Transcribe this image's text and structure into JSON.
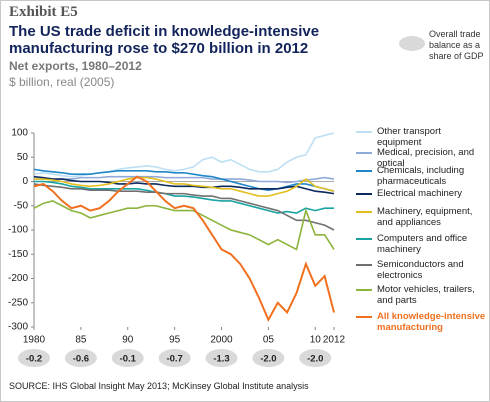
{
  "exhibit": "Exhibit E5",
  "chart_data": {
    "type": "line",
    "title": "The US trade deficit in knowledge-intensive manufacturing rose to $270 billion in 2012",
    "subtitle": "Net exports, 1980–2012",
    "y_label": "$ billion, real (2005)",
    "x": [
      1980,
      1981,
      1982,
      1983,
      1984,
      1985,
      1986,
      1987,
      1988,
      1989,
      1990,
      1991,
      1992,
      1993,
      1994,
      1995,
      1996,
      1997,
      1998,
      1999,
      2000,
      2001,
      2002,
      2003,
      2004,
      2005,
      2006,
      2007,
      2008,
      2009,
      2010,
      2011,
      2012
    ],
    "xlim": [
      1980,
      2012
    ],
    "xticks": [
      1980,
      {
        "value": 1985,
        "label": "85"
      },
      {
        "value": 1990,
        "label": "90"
      },
      {
        "value": 1995,
        "label": "95"
      },
      2000,
      {
        "value": 2005,
        "label": "05"
      },
      {
        "value": 2010,
        "label": "10"
      },
      2012
    ],
    "ylim": [
      -300,
      100
    ],
    "yticks": [
      100,
      50,
      0,
      -50,
      -100,
      -150,
      -200,
      -250,
      -300
    ],
    "grid": false,
    "series": [
      {
        "name": "Other transport equipment",
        "color": "#bcdff4",
        "values": [
          15,
          18,
          15,
          12,
          10,
          12,
          15,
          18,
          20,
          25,
          28,
          30,
          32,
          30,
          25,
          22,
          25,
          30,
          45,
          50,
          40,
          45,
          35,
          25,
          20,
          20,
          25,
          40,
          50,
          55,
          90,
          95,
          100
        ]
      },
      {
        "name": "Medical, precision, and optical",
        "color": "#8fa9d9",
        "values": [
          5,
          5,
          5,
          5,
          5,
          8,
          8,
          8,
          10,
          10,
          10,
          10,
          10,
          10,
          8,
          8,
          8,
          8,
          8,
          5,
          5,
          5,
          5,
          3,
          0,
          0,
          0,
          -2,
          0,
          3,
          5,
          8,
          5
        ]
      },
      {
        "name": "Chemicals, including pharmaceuticals",
        "color": "#1f86c8",
        "values": [
          25,
          22,
          20,
          18,
          15,
          15,
          15,
          18,
          20,
          22,
          22,
          22,
          22,
          20,
          20,
          18,
          18,
          15,
          12,
          10,
          5,
          0,
          -5,
          -10,
          -15,
          -18,
          -15,
          -10,
          -5,
          -5,
          -10,
          -15,
          -20
        ]
      },
      {
        "name": "Electrical machinery",
        "color": "#0d2a5e",
        "values": [
          10,
          8,
          5,
          5,
          2,
          0,
          0,
          0,
          -2,
          -5,
          -5,
          -3,
          -5,
          -5,
          -8,
          -10,
          -10,
          -10,
          -12,
          -12,
          -10,
          -10,
          -12,
          -15,
          -15,
          -15,
          -15,
          -12,
          -10,
          -15,
          -20,
          -22,
          -25
        ]
      },
      {
        "name": "Machinery, equipment, and appliances",
        "color": "#e3bf1e",
        "values": [
          5,
          5,
          3,
          0,
          -5,
          -8,
          -10,
          -8,
          -5,
          0,
          5,
          8,
          8,
          5,
          0,
          -5,
          -5,
          -8,
          -10,
          -12,
          -15,
          -15,
          -20,
          -25,
          -30,
          -30,
          -25,
          -20,
          -10,
          5,
          -10,
          -15,
          -20
        ]
      },
      {
        "name": "Computers and office machinery",
        "color": "#1aa3a3",
        "values": [
          0,
          0,
          -2,
          -5,
          -10,
          -12,
          -15,
          -15,
          -15,
          -15,
          -15,
          -15,
          -18,
          -22,
          -25,
          -30,
          -30,
          -32,
          -35,
          -38,
          -40,
          -40,
          -45,
          -50,
          -55,
          -60,
          -65,
          -62,
          -65,
          -55,
          -60,
          -55,
          -55
        ]
      },
      {
        "name": "Semiconductors and electronics",
        "color": "#707070",
        "values": [
          -5,
          -8,
          -10,
          -12,
          -15,
          -15,
          -18,
          -18,
          -18,
          -20,
          -20,
          -20,
          -22,
          -22,
          -25,
          -25,
          -25,
          -28,
          -30,
          -30,
          -35,
          -35,
          -40,
          -45,
          -50,
          -55,
          -60,
          -70,
          -80,
          -80,
          -85,
          -90,
          -100
        ]
      },
      {
        "name": "Motor vehicles, trailers, and parts",
        "color": "#8cb43c",
        "values": [
          -55,
          -45,
          -40,
          -50,
          -60,
          -65,
          -75,
          -70,
          -65,
          -60,
          -55,
          -55,
          -50,
          -50,
          -55,
          -60,
          -60,
          -60,
          -70,
          -80,
          -90,
          -100,
          -105,
          -110,
          -120,
          -130,
          -120,
          -130,
          -140,
          -60,
          -110,
          -110,
          -140
        ]
      },
      {
        "name": "All knowledge-intensive manufacturing",
        "color": "#f07020",
        "values": [
          -10,
          -5,
          -20,
          -40,
          -55,
          -50,
          -60,
          -55,
          -40,
          -20,
          -5,
          10,
          0,
          -20,
          -40,
          -55,
          -50,
          -55,
          -80,
          -110,
          -140,
          -150,
          -170,
          -200,
          -240,
          -285,
          -250,
          -270,
          -230,
          -170,
          -215,
          -195,
          -270
        ]
      }
    ],
    "gdp_balance": {
      "name": "Overall trade balance as a share of GDP",
      "color": "#d9d9d9",
      "x": [
        1980,
        1985,
        1990,
        1995,
        2000,
        2005,
        2010
      ],
      "values": [
        -0.2,
        -0.6,
        -0.1,
        -0.7,
        -1.3,
        -2.0,
        -2.0
      ],
      "value_labels": [
        "-0.2",
        "-0.6",
        "-0.1",
        "-0.7",
        "-1.3",
        "-2.0",
        "-2.0"
      ]
    }
  },
  "source": "SOURCE: IHS Global Insight May 2013; McKinsey Global Institute analysis"
}
